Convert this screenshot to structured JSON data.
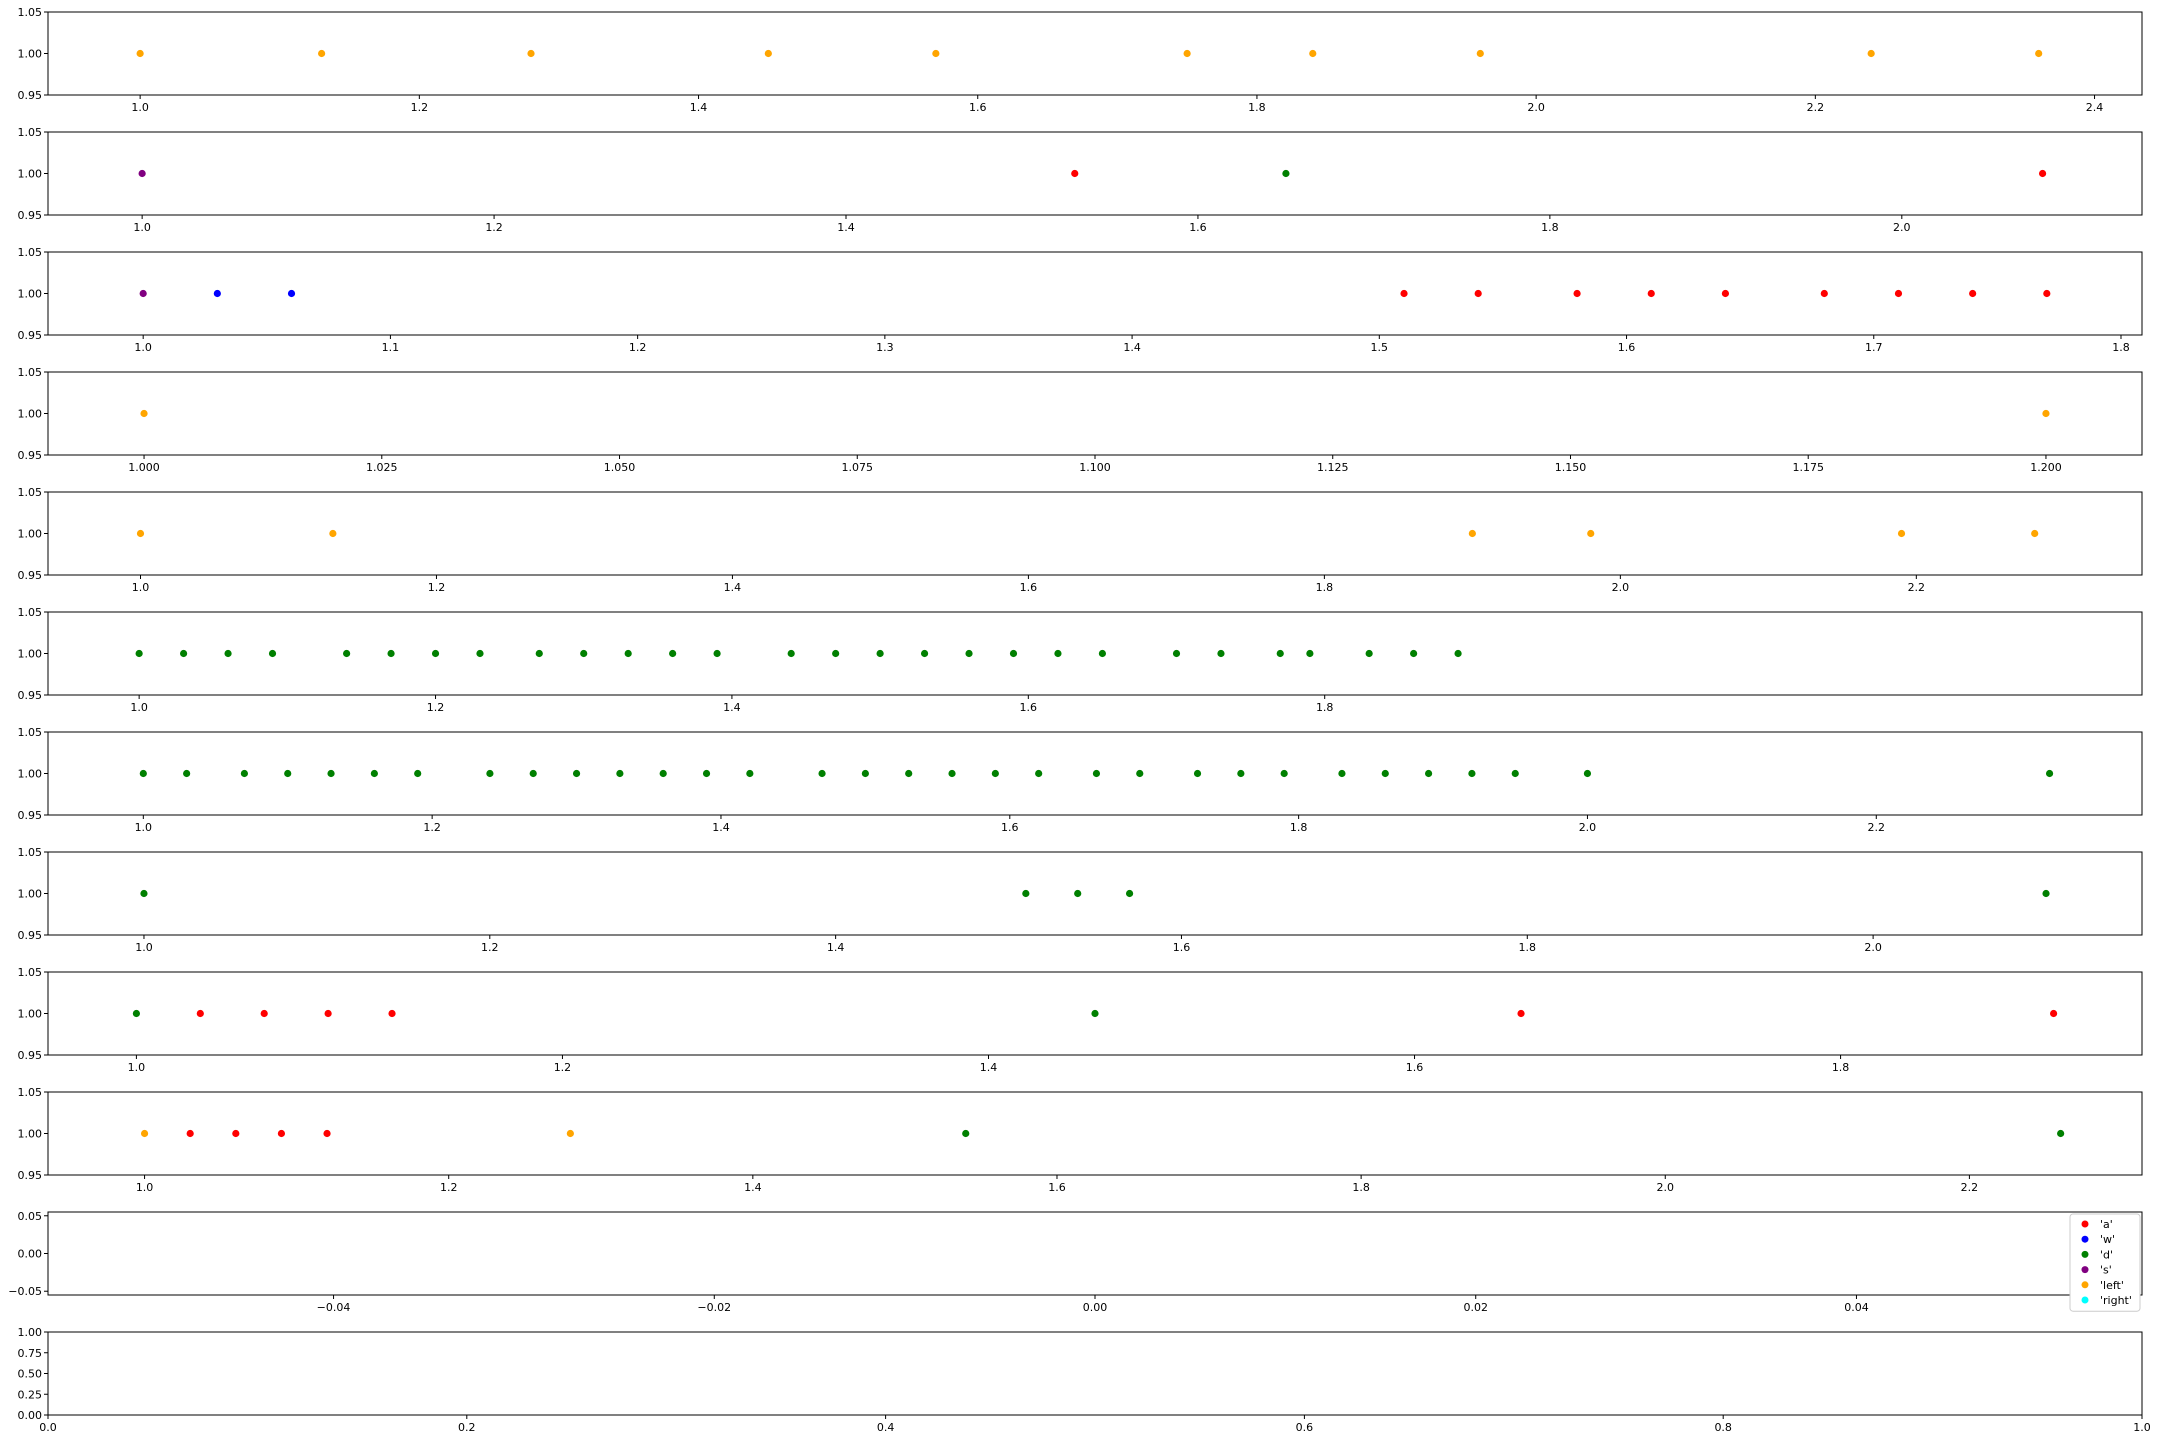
{
  "colors": {
    "a": "#ff0000",
    "w": "#0000ff",
    "d": "#008000",
    "s": "#800080",
    "left": "#ffa500",
    "right": "#00ffff",
    "axis": "#000000",
    "legend_border": "#cccccc"
  },
  "legend": {
    "position": "right, in the eleventh panel",
    "entries": [
      {
        "key": "a",
        "label": "'a'"
      },
      {
        "key": "w",
        "label": "'w'"
      },
      {
        "key": "d",
        "label": "'d'"
      },
      {
        "key": "s",
        "label": "'s'"
      },
      {
        "key": "left",
        "label": "'left'"
      },
      {
        "key": "right",
        "label": "'right'"
      }
    ]
  },
  "chart_data": [
    {
      "type": "scatter",
      "xlim": [
        0.934,
        2.434
      ],
      "ylim": [
        0.95,
        1.05
      ],
      "xticks": [
        1.0,
        1.2,
        1.4,
        1.6,
        1.8,
        2.0,
        2.2,
        2.4
      ],
      "xtick_labels": [
        "1.0",
        "1.2",
        "1.4",
        "1.6",
        "1.8",
        "2.0",
        "2.2",
        "2.4"
      ],
      "yticks": [
        0.95,
        1.0,
        1.05
      ],
      "ytick_labels": [
        "0.95",
        "1.00",
        "1.05"
      ],
      "series": [
        {
          "key": "left",
          "x": [
            1.0,
            1.13,
            1.28,
            1.45,
            1.57,
            1.75,
            1.84,
            1.96,
            2.24,
            2.36
          ],
          "y": [
            1,
            1,
            1,
            1,
            1,
            1,
            1,
            1,
            1,
            1
          ]
        }
      ]
    },
    {
      "type": "scatter",
      "xlim": [
        0.9465,
        2.1365
      ],
      "ylim": [
        0.95,
        1.05
      ],
      "xticks": [
        1.0,
        1.2,
        1.4,
        1.6,
        1.8,
        2.0
      ],
      "xtick_labels": [
        "1.0",
        "1.2",
        "1.4",
        "1.6",
        "1.8",
        "2.0"
      ],
      "yticks": [
        0.95,
        1.0,
        1.05
      ],
      "ytick_labels": [
        "0.95",
        "1.00",
        "1.05"
      ],
      "series": [
        {
          "key": "s",
          "x": [
            1.0
          ],
          "y": [
            1
          ]
        },
        {
          "key": "a",
          "x": [
            1.53,
            2.08
          ],
          "y": [
            1,
            1
          ]
        },
        {
          "key": "d",
          "x": [
            1.65
          ],
          "y": [
            1
          ]
        }
      ]
    },
    {
      "type": "scatter",
      "xlim": [
        0.9615,
        1.8085
      ],
      "ylim": [
        0.95,
        1.05
      ],
      "xticks": [
        1.0,
        1.1,
        1.2,
        1.3,
        1.4,
        1.5,
        1.6,
        1.7,
        1.8
      ],
      "xtick_labels": [
        "1.0",
        "1.1",
        "1.2",
        "1.3",
        "1.4",
        "1.5",
        "1.6",
        "1.7",
        "1.8"
      ],
      "yticks": [
        0.95,
        1.0,
        1.05
      ],
      "ytick_labels": [
        "0.95",
        "1.00",
        "1.05"
      ],
      "series": [
        {
          "key": "s",
          "x": [
            1.0
          ],
          "y": [
            1
          ]
        },
        {
          "key": "w",
          "x": [
            1.03,
            1.06
          ],
          "y": [
            1,
            1
          ]
        },
        {
          "key": "a",
          "x": [
            1.51,
            1.54,
            1.58,
            1.61,
            1.64,
            1.68,
            1.71,
            1.74,
            1.77
          ],
          "y": [
            1,
            1,
            1,
            1,
            1,
            1,
            1,
            1,
            1
          ]
        }
      ]
    },
    {
      "type": "scatter",
      "xlim": [
        0.9899,
        1.2101
      ],
      "ylim": [
        0.95,
        1.05
      ],
      "xticks": [
        1.0,
        1.025,
        1.05,
        1.075,
        1.1,
        1.125,
        1.15,
        1.175,
        1.2
      ],
      "xtick_labels": [
        "1.000",
        "1.025",
        "1.050",
        "1.075",
        "1.100",
        "1.125",
        "1.150",
        "1.175",
        "1.200"
      ],
      "yticks": [
        0.95,
        1.0,
        1.05
      ],
      "ytick_labels": [
        "0.95",
        "1.00",
        "1.05"
      ],
      "series": [
        {
          "key": "left",
          "x": [
            1.0,
            1.2
          ],
          "y": [
            1,
            1
          ]
        }
      ]
    },
    {
      "type": "scatter",
      "xlim": [
        0.9375,
        2.3525
      ],
      "ylim": [
        0.95,
        1.05
      ],
      "xticks": [
        1.0,
        1.2,
        1.4,
        1.6,
        1.8,
        2.0,
        2.2
      ],
      "xtick_labels": [
        "1.0",
        "1.2",
        "1.4",
        "1.6",
        "1.8",
        "2.0",
        "2.2"
      ],
      "yticks": [
        0.95,
        1.0,
        1.05
      ],
      "ytick_labels": [
        "0.95",
        "1.00",
        "1.05"
      ],
      "series": [
        {
          "key": "left",
          "x": [
            1.0,
            1.13,
            1.9,
            1.98,
            2.19,
            2.28
          ],
          "y": [
            1,
            1,
            1,
            1,
            1,
            1
          ]
        }
      ]
    },
    {
      "type": "scatter",
      "xlim": [
        0.9385,
        2.3515
      ],
      "ylim": [
        0.95,
        1.05
      ],
      "xticks": [
        1.0,
        1.2,
        1.4,
        1.6,
        1.8
      ],
      "xtick_labels": [
        "1.0",
        "1.2",
        "1.4",
        "1.6",
        "1.8"
      ],
      "yticks": [
        0.95,
        1.0,
        1.05
      ],
      "ytick_labels": [
        "0.95",
        "1.00",
        "1.05"
      ],
      "series": [
        {
          "key": "d",
          "x": [
            1.0,
            1.03,
            1.06,
            1.09,
            1.14,
            1.17,
            1.2,
            1.23,
            1.27,
            1.3,
            1.33,
            1.36,
            1.39,
            1.44,
            1.47,
            1.5,
            1.53,
            1.56,
            1.59,
            1.62,
            1.65,
            1.7,
            1.73,
            1.77,
            1.79,
            1.83,
            1.86,
            1.89
          ],
          "y": [
            1,
            1,
            1,
            1,
            1,
            1,
            1,
            1,
            1,
            1,
            1,
            1,
            1,
            1,
            1,
            1,
            1,
            1,
            1,
            1,
            1,
            1,
            1,
            1,
            1,
            1,
            1,
            1
          ]
        }
      ]
    },
    {
      "type": "scatter",
      "xlim": [
        0.934,
        2.384
      ],
      "ylim": [
        0.95,
        1.05
      ],
      "xticks": [
        1.0,
        1.2,
        1.4,
        1.6,
        1.8,
        2.0,
        2.2
      ],
      "xtick_labels": [
        "1.0",
        "1.2",
        "1.4",
        "1.6",
        "1.8",
        "2.0",
        "2.2"
      ],
      "yticks": [
        0.95,
        1.0,
        1.05
      ],
      "ytick_labels": [
        "0.95",
        "1.00",
        "1.05"
      ],
      "series": [
        {
          "key": "d",
          "x": [
            1.0,
            1.03,
            1.07,
            1.1,
            1.13,
            1.16,
            1.19,
            1.24,
            1.27,
            1.3,
            1.33,
            1.36,
            1.39,
            1.42,
            1.47,
            1.5,
            1.53,
            1.56,
            1.59,
            1.62,
            1.66,
            1.69,
            1.73,
            1.76,
            1.79,
            1.83,
            1.86,
            1.89,
            1.92,
            1.95,
            2.0,
            2.32
          ],
          "y": [
            1,
            1,
            1,
            1,
            1,
            1,
            1,
            1,
            1,
            1,
            1,
            1,
            1,
            1,
            1,
            1,
            1,
            1,
            1,
            1,
            1,
            1,
            1,
            1,
            1,
            1,
            1,
            1,
            1,
            1,
            1,
            1
          ]
        }
      ]
    },
    {
      "type": "scatter",
      "xlim": [
        0.9445,
        2.1555
      ],
      "ylim": [
        0.95,
        1.05
      ],
      "xticks": [
        1.0,
        1.2,
        1.4,
        1.6,
        1.8,
        2.0
      ],
      "xtick_labels": [
        "1.0",
        "1.2",
        "1.4",
        "1.6",
        "1.8",
        "2.0"
      ],
      "yticks": [
        0.95,
        1.0,
        1.05
      ],
      "ytick_labels": [
        "0.95",
        "1.00",
        "1.05"
      ],
      "series": [
        {
          "key": "d",
          "x": [
            1.0,
            1.51,
            1.54,
            1.57,
            2.1
          ],
          "y": [
            1,
            1,
            1,
            1,
            1
          ]
        }
      ]
    },
    {
      "type": "scatter",
      "xlim": [
        0.9585,
        1.9415
      ],
      "ylim": [
        0.95,
        1.05
      ],
      "xticks": [
        1.0,
        1.2,
        1.4,
        1.6,
        1.8
      ],
      "xtick_labels": [
        "1.0",
        "1.2",
        "1.4",
        "1.6",
        "1.8"
      ],
      "yticks": [
        0.95,
        1.0,
        1.05
      ],
      "ytick_labels": [
        "0.95",
        "1.00",
        "1.05"
      ],
      "series": [
        {
          "key": "d",
          "x": [
            1.0,
            1.45
          ],
          "y": [
            1,
            1
          ]
        },
        {
          "key": "a",
          "x": [
            1.03,
            1.06,
            1.09,
            1.12,
            1.65,
            1.9
          ],
          "y": [
            1,
            1,
            1,
            1,
            1,
            1
          ]
        }
      ]
    },
    {
      "type": "scatter",
      "xlim": [
        0.9365,
        2.3135
      ],
      "ylim": [
        0.95,
        1.05
      ],
      "xticks": [
        1.0,
        1.2,
        1.4,
        1.6,
        1.8,
        2.0,
        2.2
      ],
      "xtick_labels": [
        "1.0",
        "1.2",
        "1.4",
        "1.6",
        "1.8",
        "2.0",
        "2.2"
      ],
      "yticks": [
        0.95,
        1.0,
        1.05
      ],
      "ytick_labels": [
        "0.95",
        "1.00",
        "1.05"
      ],
      "series": [
        {
          "key": "left",
          "x": [
            1.0,
            1.28
          ],
          "y": [
            1,
            1
          ]
        },
        {
          "key": "a",
          "x": [
            1.03,
            1.06,
            1.09,
            1.12
          ],
          "y": [
            1,
            1,
            1,
            1
          ]
        },
        {
          "key": "d",
          "x": [
            1.54,
            2.26
          ],
          "y": [
            1,
            1
          ]
        }
      ]
    },
    {
      "type": "scatter",
      "xlim": [
        -0.055,
        0.055
      ],
      "ylim": [
        -0.055,
        0.055
      ],
      "xticks": [
        -0.04,
        -0.02,
        0.0,
        0.02,
        0.04
      ],
      "xtick_labels": [
        "−0.04",
        "−0.02",
        "0.00",
        "0.02",
        "0.04"
      ],
      "yticks": [
        -0.05,
        0.0,
        0.05
      ],
      "ytick_labels": [
        "−0.05",
        "0.00",
        "0.05"
      ],
      "series": [],
      "has_legend": true
    },
    {
      "type": "scatter",
      "xlim": [
        0,
        1
      ],
      "ylim": [
        0,
        1
      ],
      "xticks": [
        0.0,
        0.2,
        0.4,
        0.6,
        0.8,
        1.0
      ],
      "xtick_labels": [
        "0.0",
        "0.2",
        "0.4",
        "0.6",
        "0.8",
        "1.0"
      ],
      "yticks": [
        0.0,
        0.25,
        0.5,
        0.75,
        1.0
      ],
      "ytick_labels": [
        "0.00",
        "0.25",
        "0.50",
        "0.75",
        "1.00"
      ],
      "series": []
    }
  ]
}
